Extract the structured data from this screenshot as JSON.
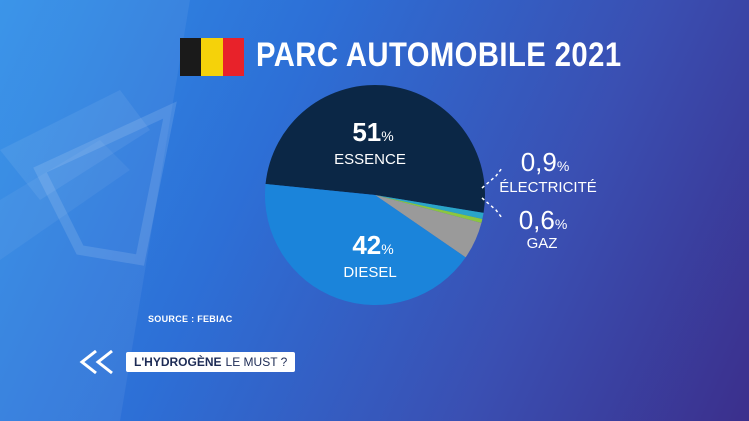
{
  "title": "PARC AUTOMOBILE 2021",
  "flag_colors": [
    "#1a1a1a",
    "#f5d20a",
    "#e8222a"
  ],
  "source": "SOURCE : FEBIAC",
  "ticker": {
    "bold": "L'HYDROGÈNE",
    "rest": "LE MUST ?"
  },
  "chart_data": {
    "type": "pie",
    "title": "PARC AUTOMOBILE 2021",
    "slices": [
      {
        "label": "ESSENCE",
        "value": 51,
        "display": "51",
        "unit": "%",
        "color": "#0b2746"
      },
      {
        "label": "DIESEL",
        "value": 42,
        "display": "42",
        "unit": "%",
        "color": "#1b84da"
      },
      {
        "label": "GAZ",
        "value": 0.6,
        "display": "0,6",
        "unit": "%",
        "color": "#8cc63f"
      },
      {
        "label": "ÉLECTRICITÉ",
        "value": 0.9,
        "display": "0,9",
        "unit": "%",
        "color": "#2aa5c8"
      },
      {
        "label": "",
        "value": 5.5,
        "display": "",
        "unit": "",
        "color": "#9a9a9a"
      }
    ]
  }
}
